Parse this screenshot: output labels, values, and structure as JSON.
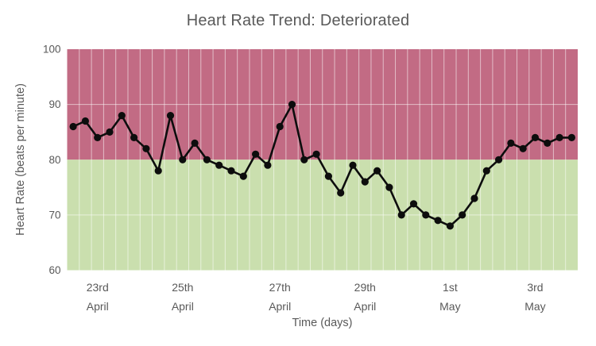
{
  "chart_data": {
    "type": "line",
    "title": "Heart Rate Trend: Deteriorated",
    "xlabel": "Time (days)",
    "ylabel": "Heart Rate (beats per minute)",
    "ylim": [
      60,
      100
    ],
    "yticks": [
      100,
      90,
      80,
      70,
      60
    ],
    "grid": "on",
    "legend": "none",
    "threshold": 80,
    "zones": [
      {
        "name": "elevated-zone",
        "from": 80,
        "to": 100,
        "color": "#c26b84"
      },
      {
        "name": "normal-zone",
        "from": 60,
        "to": 80,
        "color": "#cadfae"
      }
    ],
    "x_tick_labels": [
      {
        "index": 2,
        "line1": "23rd",
        "line2": "April"
      },
      {
        "index": 9,
        "line1": "25th",
        "line2": "April"
      },
      {
        "index": 17,
        "line1": "27th",
        "line2": "April"
      },
      {
        "index": 24,
        "line1": "29th",
        "line2": "April"
      },
      {
        "index": 31,
        "line1": "1st",
        "line2": "May"
      },
      {
        "index": 38,
        "line1": "3rd",
        "line2": "May"
      }
    ],
    "values": [
      86,
      87,
      84,
      85,
      88,
      84,
      82,
      78,
      88,
      80,
      83,
      80,
      79,
      78,
      77,
      81,
      79,
      86,
      90,
      80,
      81,
      77,
      74,
      79,
      76,
      78,
      75,
      70,
      72,
      70,
      69,
      68,
      70,
      73,
      78,
      80,
      83,
      82,
      84,
      83,
      84,
      84
    ],
    "colors": {
      "zone_above": "#c26b84",
      "zone_below": "#cadfae",
      "line": "#0d0d0d",
      "marker": "#0d0d0d",
      "gridline": "rgba(255,255,255,0.55)",
      "text": "#595959"
    }
  }
}
